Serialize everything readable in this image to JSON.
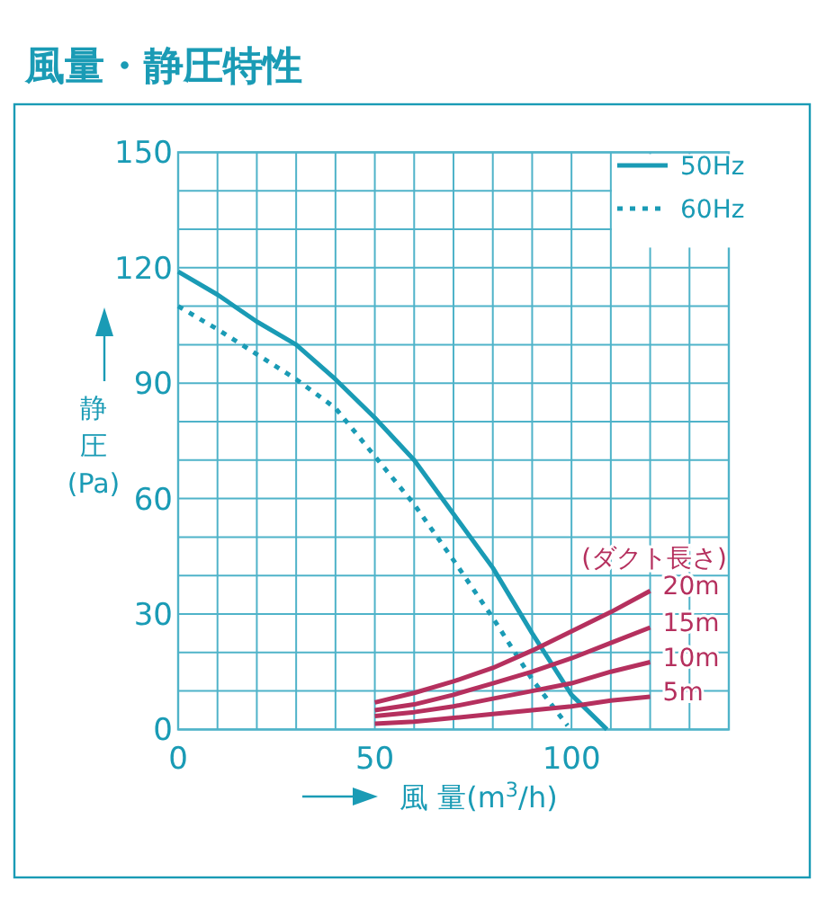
{
  "chart_data": {
    "type": "line",
    "title": "風量・静圧特性",
    "xlabel": "風 量(m$^{3}$/h)",
    "ylabel": "静圧(Pa)",
    "xlim": [
      0,
      140
    ],
    "ylim": [
      0,
      150
    ],
    "xticks": [
      0,
      {
        "value": 10,
        "label": null
      },
      {
        "value": 20,
        "label": null
      },
      {
        "value": 30,
        "label": null
      },
      {
        "value": 40,
        "label": null
      },
      50,
      {
        "value": 60,
        "label": null
      },
      {
        "value": 70,
        "label": null
      },
      {
        "value": 80,
        "label": null
      },
      {
        "value": 90,
        "label": null
      },
      100,
      {
        "value": 110,
        "label": null
      },
      {
        "value": 120,
        "label": null
      },
      {
        "value": 130,
        "label": null
      },
      {
        "value": 140,
        "label": null
      }
    ],
    "yticks": [
      0,
      {
        "value": 10,
        "label": null
      },
      {
        "value": 20,
        "label": null
      },
      30,
      {
        "value": 40,
        "label": null
      },
      {
        "value": 50,
        "label": null
      },
      60,
      {
        "value": 70,
        "label": null
      },
      {
        "value": 80,
        "label": null
      },
      90,
      {
        "value": 100,
        "label": null
      },
      {
        "value": 110,
        "label": null
      },
      120,
      {
        "value": 130,
        "label": null
      },
      {
        "value": 140,
        "label": null
      },
      150
    ],
    "grid": true,
    "legend": "top right",
    "marker": "none",
    "annotations": [
      "(ダクト長さ)"
    ],
    "series": [
      {
        "name": "50Hz",
        "color": "#1a9bb5",
        "line_style": "solid",
        "x": [
          0,
          10,
          20,
          30,
          40,
          50,
          60,
          70,
          80,
          90,
          100,
          109
        ],
        "values": [
          119,
          113,
          106,
          100,
          91,
          81,
          70,
          56,
          42,
          25,
          9,
          0
        ]
      },
      {
        "name": "60Hz",
        "color": "#1a9bb5",
        "line_style": "dotted",
        "x": [
          0,
          10,
          20,
          30,
          40,
          50,
          60,
          70,
          80,
          90,
          99
        ],
        "values": [
          110,
          104,
          97.5,
          91,
          83.5,
          71,
          58.5,
          44,
          29,
          13,
          1
        ]
      },
      {
        "name": "20m",
        "color": "#b5305e",
        "line_style": "solid",
        "x": [
          50,
          60,
          70,
          80,
          90,
          100,
          110,
          120
        ],
        "values": [
          7,
          9.5,
          12.5,
          16,
          20.5,
          25.5,
          30.5,
          36
        ]
      },
      {
        "name": "15m",
        "color": "#b5305e",
        "line_style": "solid",
        "x": [
          50,
          60,
          70,
          80,
          90,
          100,
          110,
          120
        ],
        "values": [
          5,
          6.5,
          9,
          12,
          15,
          18.5,
          22.5,
          26.5
        ]
      },
      {
        "name": "10m",
        "color": "#b5305e",
        "line_style": "solid",
        "x": [
          50,
          60,
          70,
          80,
          90,
          100,
          110,
          120
        ],
        "values": [
          3.5,
          4.5,
          6,
          8,
          10,
          12,
          15,
          17.5
        ]
      },
      {
        "name": "5m",
        "color": "#b5305e",
        "line_style": "solid",
        "x": [
          50,
          60,
          70,
          80,
          90,
          100,
          110,
          120
        ],
        "values": [
          1.5,
          2,
          3,
          4,
          5,
          6,
          7.5,
          8.5
        ]
      }
    ]
  }
}
